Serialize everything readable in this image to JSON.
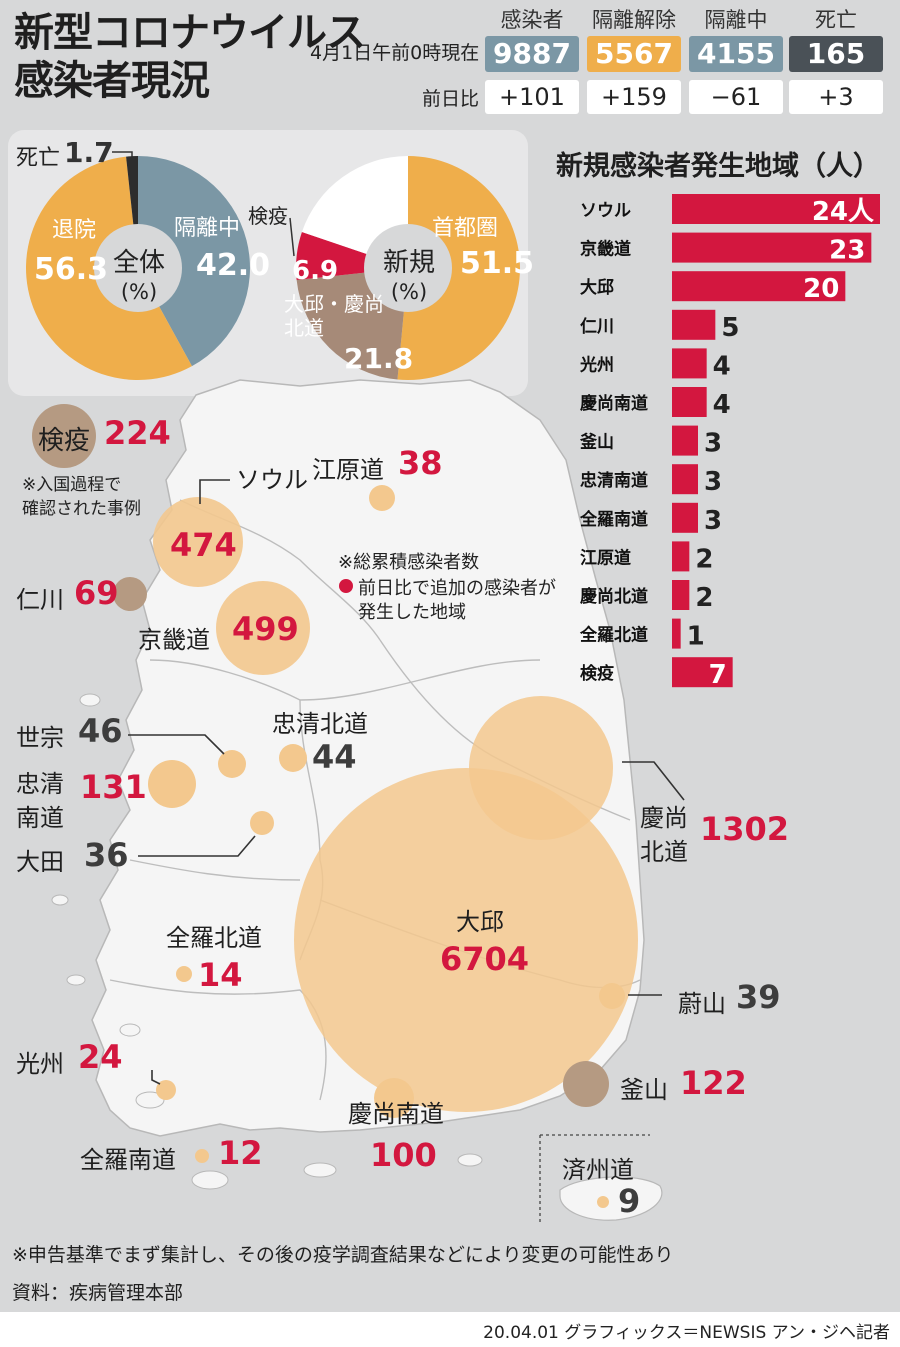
{
  "header": {
    "title_line1": "新型コロナウイルス",
    "title_line2": "感染者現況",
    "as_of": "4月1日午前0時現在",
    "change_label": "前日比"
  },
  "stats": [
    {
      "label": "感染者",
      "value": "9887",
      "change": "+101",
      "color": "#7b97a5"
    },
    {
      "label": "隔離解除",
      "value": "5567",
      "change": "+159",
      "color": "#efae4b"
    },
    {
      "label": "隔離中",
      "value": "4155",
      "change": "−61",
      "color": "#7b97a5"
    },
    {
      "label": "死亡",
      "value": "165",
      "change": "+3",
      "color": "#4a5157"
    }
  ],
  "chart_data": [
    {
      "type": "pie",
      "title": "全体",
      "unit": "(%)",
      "slices": [
        {
          "label": "隔離中",
          "value": 42.0,
          "color": "#7b97a5"
        },
        {
          "label": "退院",
          "value": 56.3,
          "color": "#efae4b"
        },
        {
          "label": "死亡",
          "value": 1.7,
          "color": "#2d2d2d"
        }
      ]
    },
    {
      "type": "pie",
      "title": "新規",
      "unit": "(%)",
      "slices": [
        {
          "label": "首都圏",
          "value": 51.5,
          "color": "#efae4b"
        },
        {
          "label": "大邱・慶尚北道",
          "value": 21.8,
          "color": "#a68a78"
        },
        {
          "label": "検疫",
          "value": 6.9,
          "color": "#d3173f"
        },
        {
          "label": "",
          "value": 19.8,
          "color": "#ffffff"
        }
      ]
    },
    {
      "type": "bar",
      "title": "新規感染者発生地域（人）",
      "unit": "人",
      "categories": [
        "ソウル",
        "京畿道",
        "大邱",
        "仁川",
        "光州",
        "慶尚南道",
        "釜山",
        "忠清南道",
        "全羅南道",
        "江原道",
        "慶尚北道",
        "全羅北道",
        "検疫"
      ],
      "values": [
        24,
        23,
        20,
        5,
        4,
        4,
        3,
        3,
        3,
        2,
        2,
        1,
        7
      ],
      "xlim": [
        0,
        24
      ]
    },
    {
      "type": "scatter",
      "title": "",
      "note": "※総累積感染者数",
      "legend": "前日比で追加の感染者が発生した地域",
      "points": [
        {
          "region": "大邱",
          "value": 6704,
          "new": true
        },
        {
          "region": "慶尚北道",
          "value": 1302,
          "new": true
        },
        {
          "region": "京畿道",
          "value": 499,
          "new": true
        },
        {
          "region": "ソウル",
          "value": 474,
          "new": true
        },
        {
          "region": "検疫",
          "value": 224,
          "new": true
        },
        {
          "region": "忠清南道",
          "value": 131,
          "new": true
        },
        {
          "region": "釜山",
          "value": 122,
          "new": true
        },
        {
          "region": "慶尚南道",
          "value": 100,
          "new": true
        },
        {
          "region": "仁川",
          "value": 69,
          "new": true
        },
        {
          "region": "世宗",
          "value": 46,
          "new": false
        },
        {
          "region": "忠清北道",
          "value": 44,
          "new": false
        },
        {
          "region": "蔚山",
          "value": 39,
          "new": false
        },
        {
          "region": "江原道",
          "value": 38,
          "new": true
        },
        {
          "region": "大田",
          "value": 36,
          "new": false
        },
        {
          "region": "光州",
          "value": 24,
          "new": true
        },
        {
          "region": "全羅北道",
          "value": 14,
          "new": true
        },
        {
          "region": "全羅南道",
          "value": 12,
          "new": true
        },
        {
          "region": "済州道",
          "value": 9,
          "new": false
        }
      ]
    }
  ],
  "map": {
    "quarantine_note_1": "※入国過程で",
    "quarantine_note_2": "確認された事例",
    "legend_note": "※総累積感染者数",
    "legend_new_1": "前日比で追加の感染者が",
    "legend_new_2": "発生した地域",
    "label_chungnam_1": "忠清",
    "label_chungnam_2": "南道",
    "label_gyeongbuk_1": "慶尚",
    "label_gyeongbuk_2": "北道"
  },
  "footer": {
    "note": "※申告基準でまず集計し、その後の疫学調査結果などにより変更の可能性あり",
    "source": "資料：疾病管理本部",
    "credit": "20.04.01 グラフィックス＝NEWSIS アン・ジヘ記者"
  },
  "colors": {
    "accent_red": "#d3173f",
    "bubble_orange": "#f3c88e",
    "bubble_brown": "#b59a82",
    "map_land": "#f5f5f5",
    "background": "#d7d8d9"
  }
}
